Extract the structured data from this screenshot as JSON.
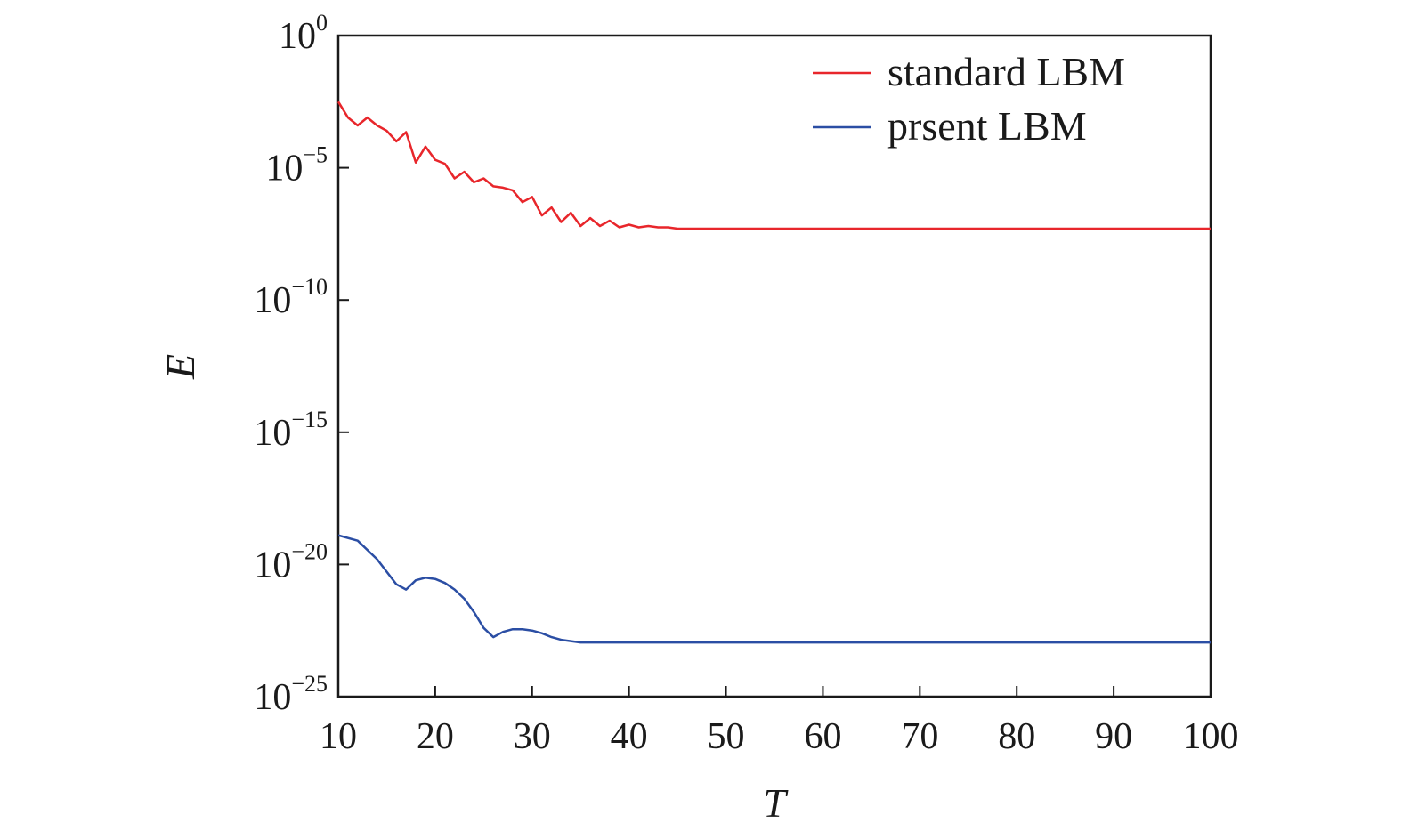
{
  "chart_data": {
    "type": "line",
    "title": "",
    "xlabel": "T",
    "ylabel": "E",
    "xlim": [
      10,
      100
    ],
    "ylim_exponent": [
      -25,
      0
    ],
    "yscale": "log",
    "grid": false,
    "legend_position": "top-right",
    "x_ticks": [
      "10",
      "20",
      "30",
      "40",
      "50",
      "60",
      "70",
      "80",
      "90",
      "100"
    ],
    "x_tick_values": [
      10,
      20,
      30,
      40,
      50,
      60,
      70,
      80,
      90,
      100
    ],
    "y_ticks": [
      {
        "base": "10",
        "exp": "0",
        "log10": 0
      },
      {
        "base": "10",
        "exp": "−5",
        "log10": -5
      },
      {
        "base": "10",
        "exp": "−10",
        "log10": -10
      },
      {
        "base": "10",
        "exp": "−15",
        "log10": -15
      },
      {
        "base": "10",
        "exp": "−20",
        "log10": -20
      },
      {
        "base": "10",
        "exp": "−25",
        "log10": -25
      }
    ],
    "series": [
      {
        "name": "standard LBM",
        "color": "#e8262b",
        "x": [
          10,
          11,
          12,
          13,
          14,
          15,
          16,
          17,
          18,
          19,
          20,
          21,
          22,
          23,
          24,
          25,
          26,
          27,
          28,
          29,
          30,
          31,
          32,
          33,
          34,
          35,
          36,
          37,
          38,
          39,
          40,
          41,
          42,
          43,
          44,
          45,
          50,
          60,
          70,
          80,
          90,
          100
        ],
        "log10_y": [
          -2.5,
          -3.1,
          -3.4,
          -3.1,
          -3.4,
          -3.6,
          -4.0,
          -3.65,
          -4.8,
          -4.2,
          -4.7,
          -4.85,
          -5.4,
          -5.15,
          -5.55,
          -5.4,
          -5.7,
          -5.75,
          -5.85,
          -6.3,
          -6.1,
          -6.8,
          -6.5,
          -7.05,
          -6.7,
          -7.2,
          -6.9,
          -7.2,
          -7.0,
          -7.25,
          -7.15,
          -7.25,
          -7.2,
          -7.25,
          -7.25,
          -7.3,
          -7.3,
          -7.3,
          -7.3,
          -7.3,
          -7.3,
          -7.3
        ]
      },
      {
        "name": "prsent LBM",
        "color": "#2b4ea4",
        "x": [
          10,
          12,
          14,
          16,
          17,
          18,
          19,
          20,
          21,
          22,
          23,
          24,
          25,
          26,
          27,
          28,
          29,
          30,
          31,
          32,
          33,
          34,
          35,
          36,
          40,
          50,
          60,
          70,
          80,
          90,
          100
        ],
        "log10_y": [
          -18.9,
          -19.1,
          -19.8,
          -20.75,
          -20.95,
          -20.6,
          -20.5,
          -20.55,
          -20.7,
          -20.95,
          -21.3,
          -21.8,
          -22.4,
          -22.75,
          -22.55,
          -22.45,
          -22.45,
          -22.5,
          -22.6,
          -22.75,
          -22.85,
          -22.9,
          -22.95,
          -22.95,
          -22.95,
          -22.95,
          -22.95,
          -22.95,
          -22.95,
          -22.95,
          -22.95
        ]
      }
    ]
  }
}
